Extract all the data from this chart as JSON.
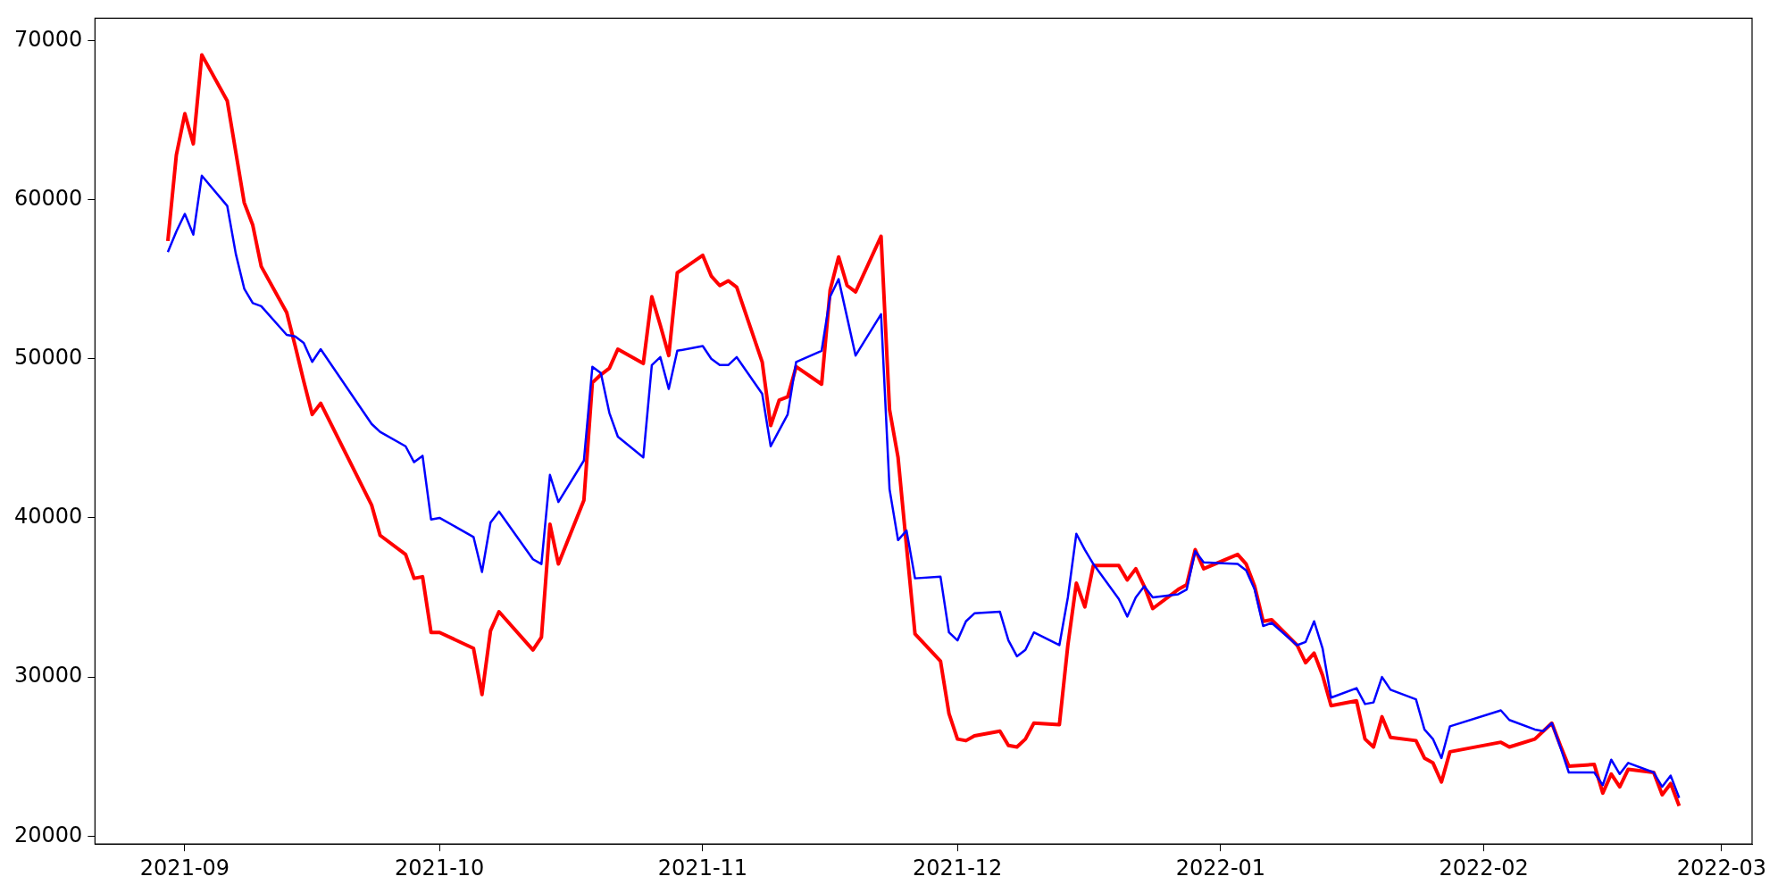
{
  "chart_data": {
    "type": "line",
    "grid": false,
    "legend": false,
    "marker": "none",
    "line_style": "solid",
    "x": [
      "2021-08-30",
      "2021-08-31",
      "2021-09-01",
      "2021-09-02",
      "2021-09-03",
      "2021-09-06",
      "2021-09-07",
      "2021-09-08",
      "2021-09-09",
      "2021-09-10",
      "2021-09-13",
      "2021-09-14",
      "2021-09-15",
      "2021-09-16",
      "2021-09-17",
      "2021-09-23",
      "2021-09-24",
      "2021-09-27",
      "2021-09-28",
      "2021-09-29",
      "2021-09-30",
      "2021-10-01",
      "2021-10-05",
      "2021-10-06",
      "2021-10-07",
      "2021-10-08",
      "2021-10-12",
      "2021-10-13",
      "2021-10-14",
      "2021-10-15",
      "2021-10-18",
      "2021-10-19",
      "2021-10-20",
      "2021-10-21",
      "2021-10-22",
      "2021-10-25",
      "2021-10-26",
      "2021-10-27",
      "2021-10-28",
      "2021-10-29",
      "2021-11-01",
      "2021-11-02",
      "2021-11-03",
      "2021-11-04",
      "2021-11-05",
      "2021-11-08",
      "2021-11-09",
      "2021-11-10",
      "2021-11-11",
      "2021-11-12",
      "2021-11-15",
      "2021-11-16",
      "2021-11-17",
      "2021-11-18",
      "2021-11-19",
      "2021-11-22",
      "2021-11-23",
      "2021-11-24",
      "2021-11-25",
      "2021-11-26",
      "2021-11-29",
      "2021-11-30",
      "2021-12-01",
      "2021-12-02",
      "2021-12-03",
      "2021-12-06",
      "2021-12-07",
      "2021-12-08",
      "2021-12-09",
      "2021-12-10",
      "2021-12-13",
      "2021-12-14",
      "2021-12-15",
      "2021-12-16",
      "2021-12-17",
      "2021-12-20",
      "2021-12-21",
      "2021-12-22",
      "2021-12-23",
      "2021-12-24",
      "2021-12-27",
      "2021-12-28",
      "2021-12-29",
      "2021-12-30",
      "2022-01-03",
      "2022-01-04",
      "2022-01-05",
      "2022-01-06",
      "2022-01-07",
      "2022-01-10",
      "2022-01-11",
      "2022-01-12",
      "2022-01-13",
      "2022-01-14",
      "2022-01-17",
      "2022-01-18",
      "2022-01-19",
      "2022-01-20",
      "2022-01-21",
      "2022-01-24",
      "2022-01-25",
      "2022-01-26",
      "2022-01-27",
      "2022-01-28",
      "2022-02-03",
      "2022-02-04",
      "2022-02-07",
      "2022-02-08",
      "2022-02-09",
      "2022-02-10",
      "2022-02-11",
      "2022-02-14",
      "2022-02-15",
      "2022-02-16",
      "2022-02-17",
      "2022-02-18",
      "2022-02-21",
      "2022-02-22",
      "2022-02-23",
      "2022-02-24"
    ],
    "series": [
      {
        "color": "#ff0000",
        "values": [
          57400,
          62800,
          65400,
          63500,
          69100,
          66200,
          63000,
          59800,
          58400,
          55800,
          52900,
          50800,
          48600,
          46500,
          47200,
          40800,
          38900,
          37700,
          36200,
          36300,
          32800,
          32800,
          31800,
          28900,
          32900,
          34100,
          31700,
          32500,
          39600,
          37100,
          41100,
          48500,
          49000,
          49400,
          50600,
          49700,
          53900,
          52100,
          50200,
          55400,
          56500,
          55200,
          54600,
          54900,
          54500,
          49800,
          45800,
          47400,
          47600,
          49500,
          48400,
          54300,
          56400,
          54600,
          54200,
          57700,
          46800,
          43800,
          38200,
          32700,
          31000,
          27700,
          26100,
          26000,
          26300,
          26600,
          25700,
          25600,
          26100,
          27100,
          27000,
          32000,
          35900,
          34400,
          37000,
          37000,
          36100,
          36800,
          35700,
          34300,
          35500,
          35800,
          38000,
          36800,
          37700,
          37100,
          35700,
          33500,
          33600,
          32000,
          30900,
          31500,
          30100,
          28200,
          28500,
          26100,
          25600,
          27500,
          26200,
          26000,
          24900,
          24600,
          23400,
          25300,
          25900,
          25600,
          26100,
          26600,
          27100,
          25700,
          24400,
          24500,
          22700,
          23900,
          23100,
          24200,
          24000,
          22600,
          23300,
          21900
        ]
      },
      {
        "color": "#0000ff",
        "values": [
          56700,
          58000,
          59100,
          57800,
          61500,
          59600,
          56600,
          54400,
          53500,
          53300,
          51500,
          51400,
          51000,
          49800,
          50600,
          45900,
          45400,
          44500,
          43500,
          43900,
          39900,
          40000,
          38800,
          36600,
          39700,
          40400,
          37400,
          37100,
          42700,
          41000,
          43600,
          49500,
          49100,
          46600,
          45100,
          43800,
          49600,
          50100,
          48100,
          50500,
          50800,
          50000,
          49600,
          49600,
          50100,
          47800,
          44500,
          45500,
          46500,
          49800,
          50500,
          53900,
          55000,
          52600,
          50200,
          52800,
          41800,
          38600,
          39200,
          36200,
          36300,
          32800,
          32300,
          33500,
          34000,
          34100,
          32300,
          31300,
          31700,
          32800,
          32000,
          35000,
          39000,
          38000,
          37100,
          34900,
          33800,
          35000,
          35700,
          35000,
          35200,
          35500,
          37900,
          37200,
          37100,
          36700,
          35500,
          33200,
          33400,
          32000,
          32200,
          33500,
          31800,
          28700,
          29300,
          28300,
          28400,
          30000,
          29200,
          28600,
          26700,
          26100,
          24900,
          26900,
          27900,
          27300,
          26700,
          26600,
          27100,
          25600,
          24000,
          24000,
          23200,
          24800,
          23900,
          24600,
          24000,
          23100,
          23800,
          22400
        ]
      }
    ],
    "xlim": [
      "2021-08-21T10:00",
      "2022-03-04T14:00"
    ],
    "xticks": [
      {
        "value": "2021-09-01",
        "label": "2021-09"
      },
      {
        "value": "2021-10-01",
        "label": "2021-10"
      },
      {
        "value": "2021-11-01",
        "label": "2021-11"
      },
      {
        "value": "2021-12-01",
        "label": "2021-12"
      },
      {
        "value": "2022-01-01",
        "label": "2022-01"
      },
      {
        "value": "2022-02-01",
        "label": "2022-02"
      },
      {
        "value": "2022-03-01",
        "label": "2022-03"
      }
    ],
    "ylim": [
      19500,
      71400
    ],
    "yticks": [
      20000,
      30000,
      40000,
      50000,
      60000,
      70000
    ]
  }
}
